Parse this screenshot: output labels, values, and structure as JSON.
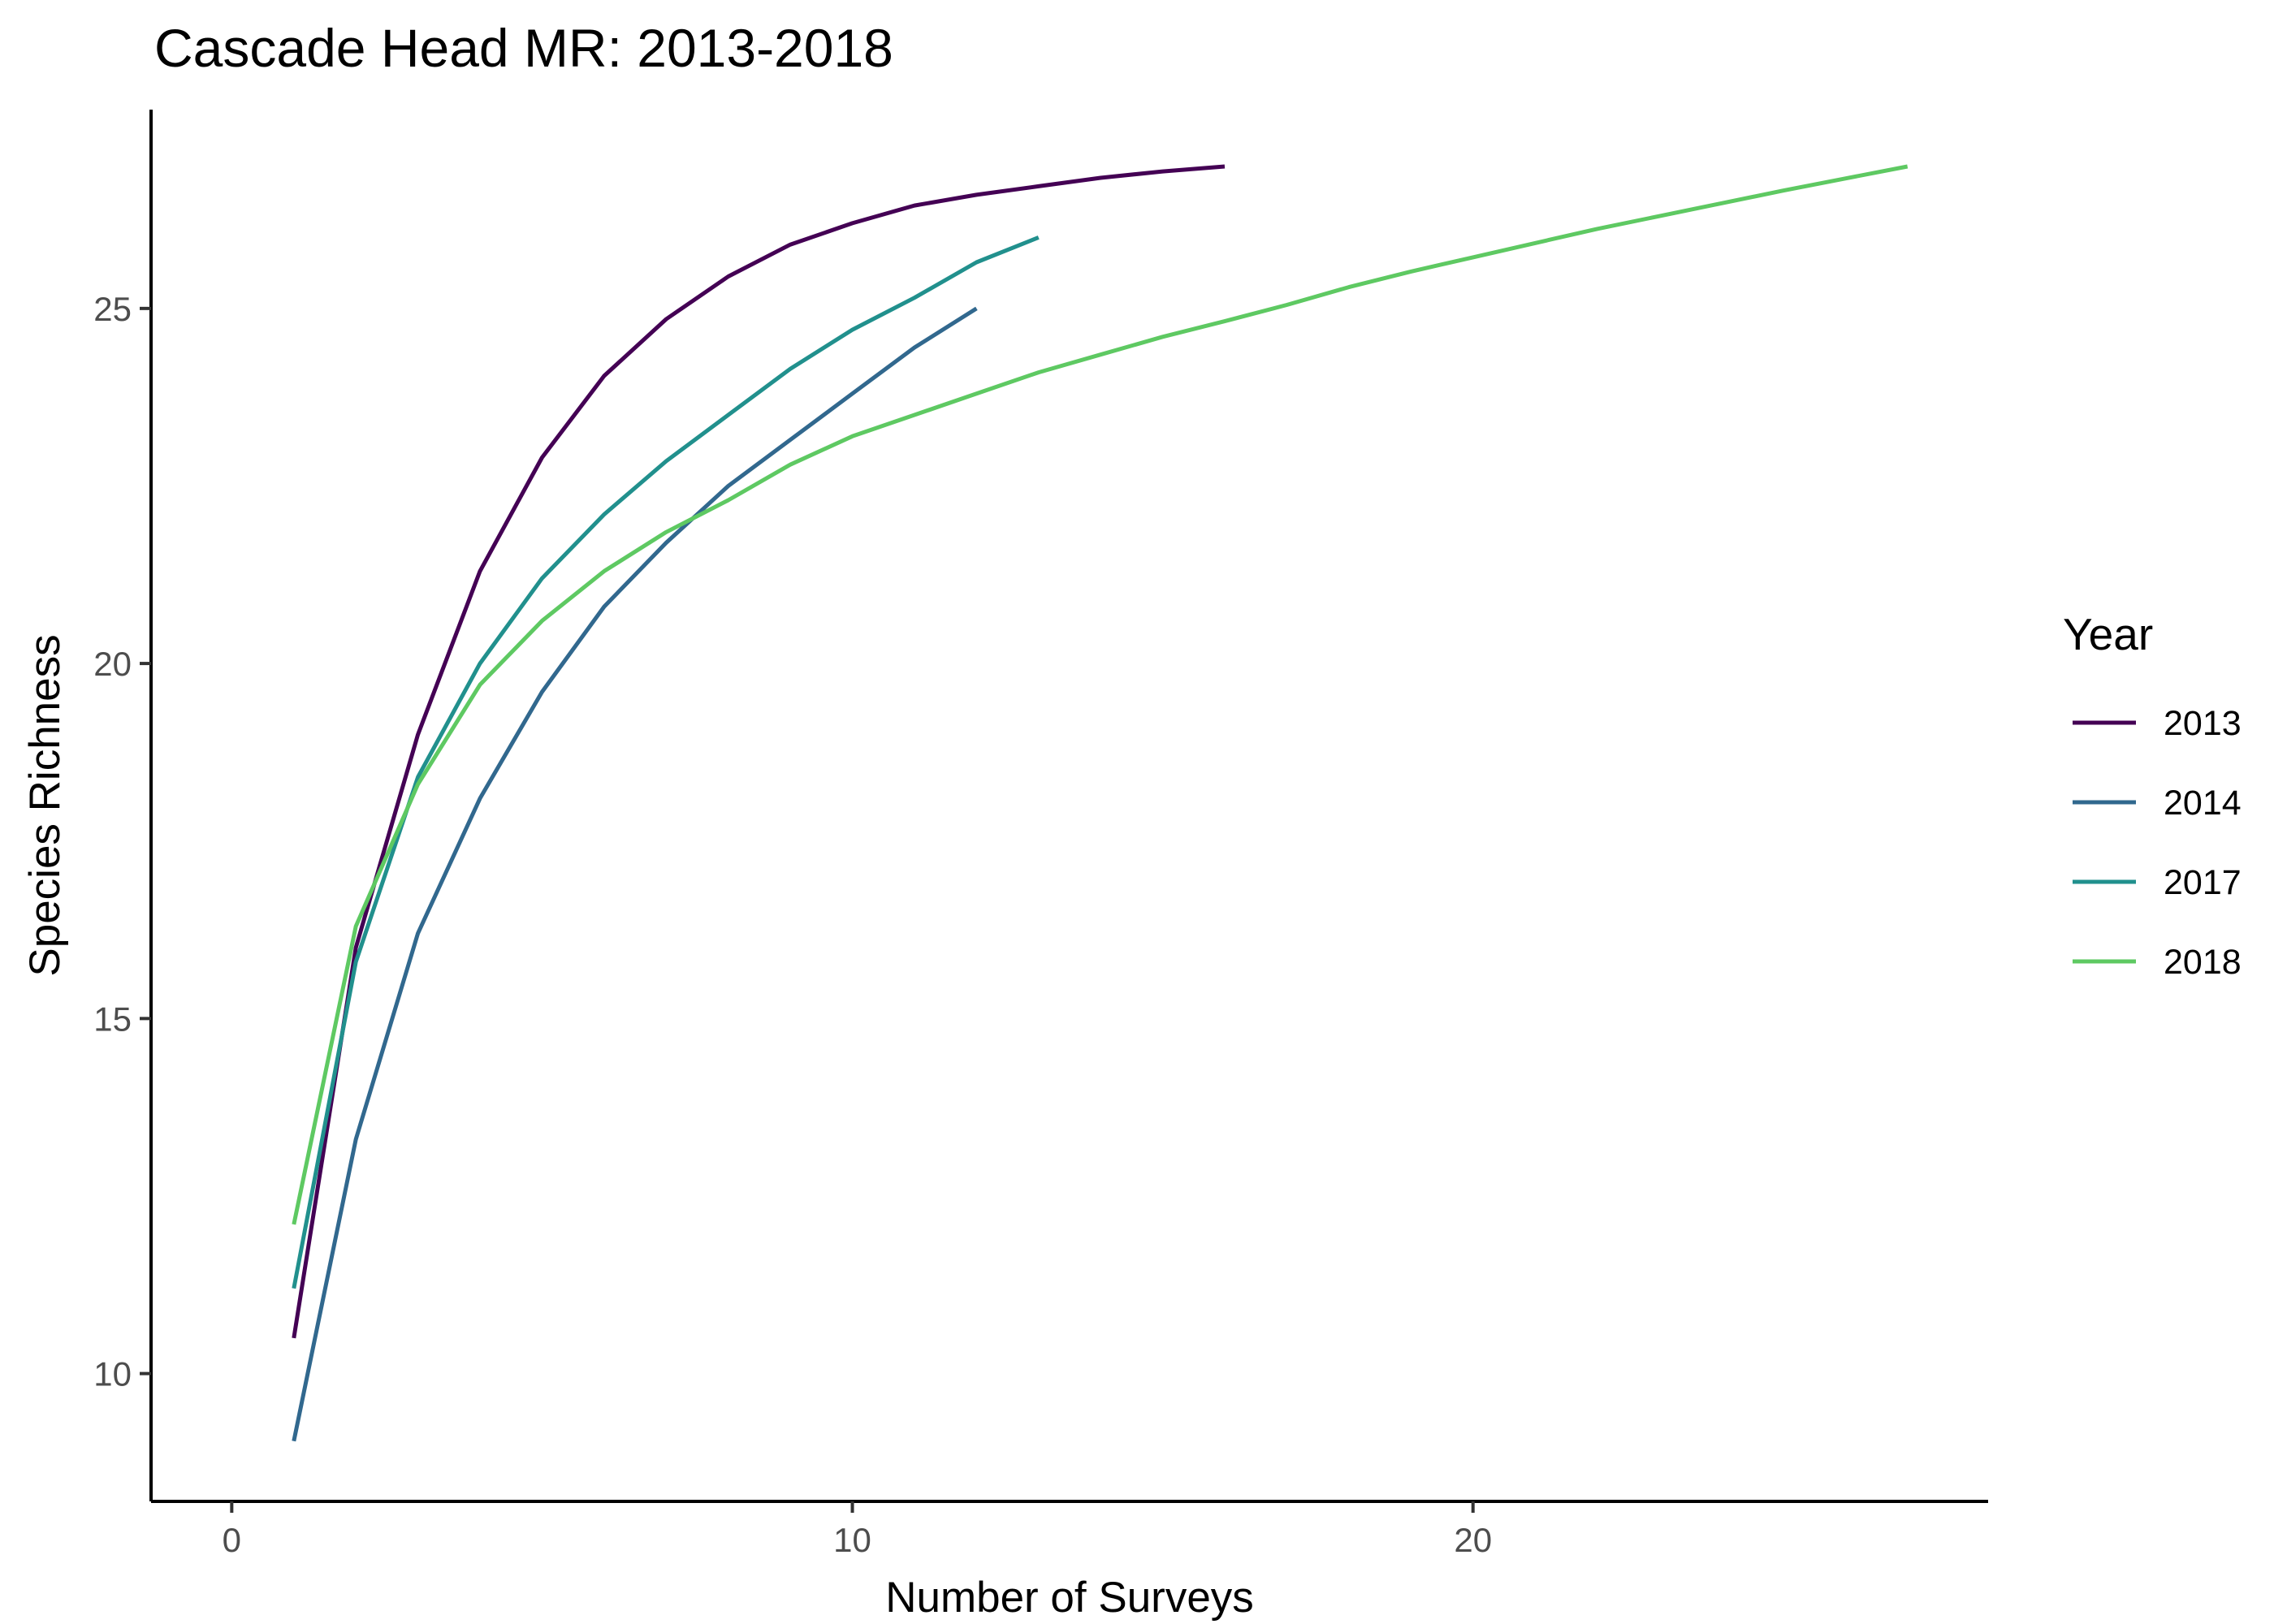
{
  "chart_data": {
    "type": "line",
    "title": "Cascade Head MR: 2013-2018",
    "xlabel": "Number of Surveys",
    "ylabel": "Species Richness",
    "xlim": [
      -1.3,
      28.3
    ],
    "ylim": [
      8.2,
      27.8
    ],
    "xticks": [
      0,
      10,
      20
    ],
    "yticks": [
      10,
      15,
      20,
      25
    ],
    "grid": false,
    "legend": {
      "title": "Year",
      "position": "right"
    },
    "series": [
      {
        "name": "2013",
        "color": "#440154",
        "x": [
          1,
          2,
          3,
          4,
          5,
          6,
          7,
          8,
          9,
          10,
          11,
          12,
          13,
          14,
          15,
          16
        ],
        "y": [
          10.5,
          16.0,
          19.0,
          21.3,
          22.9,
          24.05,
          24.85,
          25.45,
          25.9,
          26.2,
          26.45,
          26.6,
          26.72,
          26.84,
          26.93,
          27.0
        ]
      },
      {
        "name": "2014",
        "color": "#31688e",
        "x": [
          1,
          2,
          3,
          4,
          5,
          6,
          7,
          8,
          9,
          10,
          11,
          12
        ],
        "y": [
          9.05,
          13.3,
          16.2,
          18.1,
          19.6,
          20.8,
          21.7,
          22.5,
          23.15,
          23.8,
          24.45,
          25.0
        ]
      },
      {
        "name": "2017",
        "color": "#21908d",
        "x": [
          1,
          2,
          3,
          4,
          5,
          6,
          7,
          8,
          9,
          10,
          11,
          12,
          13
        ],
        "y": [
          11.2,
          15.8,
          18.4,
          20.0,
          21.2,
          22.1,
          22.85,
          23.5,
          24.15,
          24.7,
          25.15,
          25.65,
          26.0
        ]
      },
      {
        "name": "2018",
        "color": "#5ec962",
        "x": [
          1,
          2,
          3,
          4,
          5,
          6,
          7,
          8,
          9,
          10,
          11,
          12,
          13,
          14,
          15,
          16,
          17,
          18,
          19,
          20,
          21,
          22,
          23,
          24,
          25,
          26,
          27
        ],
        "y": [
          12.1,
          16.3,
          18.3,
          19.7,
          20.6,
          21.3,
          21.85,
          22.3,
          22.8,
          23.2,
          23.5,
          23.8,
          24.1,
          24.35,
          24.6,
          24.82,
          25.05,
          25.3,
          25.52,
          25.72,
          25.92,
          26.12,
          26.3,
          26.48,
          26.66,
          26.83,
          27.0
        ]
      }
    ]
  }
}
